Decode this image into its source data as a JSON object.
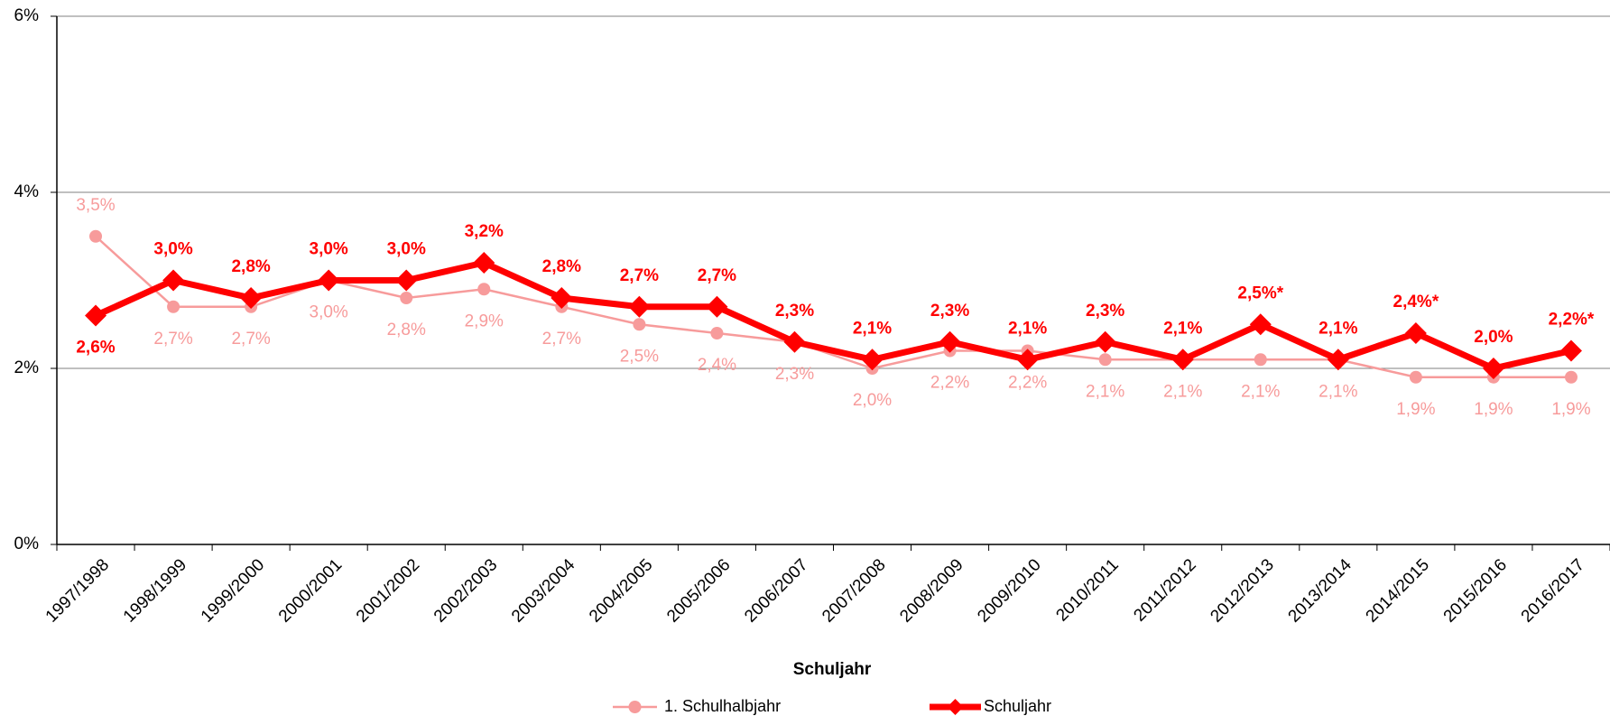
{
  "chart_data": {
    "type": "line",
    "x_label": "Schuljahr",
    "categories": [
      "1997/1998",
      "1998/1999",
      "1999/2000",
      "2000/2001",
      "2001/2002",
      "2002/2003",
      "2003/2004",
      "2004/2005",
      "2005/2006",
      "2006/2007",
      "2007/2008",
      "2008/2009",
      "2009/2010",
      "2010/2011",
      "2011/2012",
      "2012/2013",
      "2013/2014",
      "2014/2015",
      "2015/2016",
      "2016/2017"
    ],
    "series": [
      {
        "name": "1. Schulhalbjahr",
        "color": "#f79b9b",
        "marker": "circle",
        "values": [
          3.5,
          2.7,
          2.7,
          3.0,
          2.8,
          2.9,
          2.7,
          2.5,
          2.4,
          2.3,
          2.0,
          2.2,
          2.2,
          2.1,
          2.1,
          2.1,
          2.1,
          1.9,
          1.9,
          1.9
        ],
        "value_labels": [
          "3,5%",
          "2,7%",
          "2,7%",
          "3,0%",
          "2,8%",
          "2,9%",
          "2,7%",
          "2,5%",
          "2,4%",
          "2,3%",
          "2,0%",
          "2,2%",
          "2,2%",
          "2,1%",
          "2,1%",
          "2,1%",
          "2,1%",
          "1,9%",
          "1,9%",
          "1,9%"
        ]
      },
      {
        "name": "Schuljahr",
        "color": "#ff0000",
        "marker": "diamond",
        "values": [
          2.6,
          3.0,
          2.8,
          3.0,
          3.0,
          3.2,
          2.8,
          2.7,
          2.7,
          2.3,
          2.1,
          2.3,
          2.1,
          2.3,
          2.1,
          2.5,
          2.1,
          2.4,
          2.0,
          2.2
        ],
        "value_labels": [
          "2,6%",
          "3,0%",
          "2,8%",
          "3,0%",
          "3,0%",
          "3,2%",
          "2,8%",
          "2,7%",
          "2,7%",
          "2,3%",
          "2,1%",
          "2,3%",
          "2,1%",
          "2,3%",
          "2,1%",
          "2,5%*",
          "2,1%",
          "2,4%*",
          "2,0%",
          "2,2%*"
        ]
      }
    ],
    "ylim": [
      0,
      6
    ],
    "yticks": [
      {
        "value": 0,
        "label": "0%"
      },
      {
        "value": 2,
        "label": "2%"
      },
      {
        "value": 4,
        "label": "4%"
      },
      {
        "value": 6,
        "label": "6%"
      }
    ],
    "grid": true
  }
}
